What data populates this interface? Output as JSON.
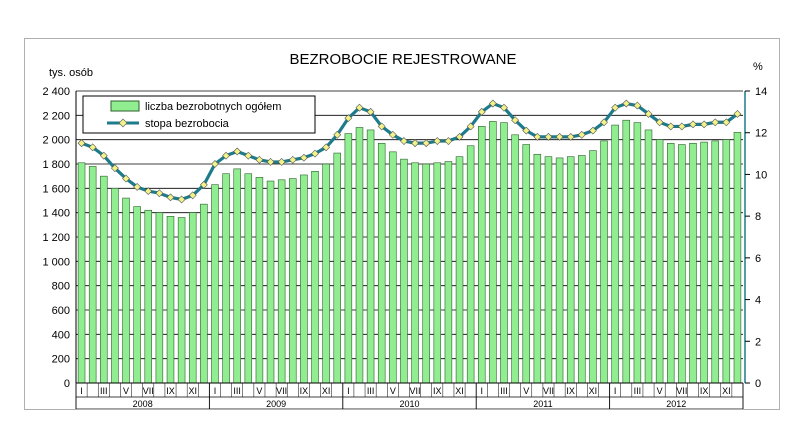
{
  "chart_data": {
    "type": "bar",
    "title": "BEZROBOCIE REJESTROWANE",
    "ylabel_left": "tys. osób",
    "ylabel_right": "%",
    "ylim_left": [
      0,
      2400
    ],
    "yticks_left": [
      0,
      200,
      400,
      600,
      800,
      1000,
      1200,
      1400,
      1600,
      1800,
      2000,
      2200,
      2400
    ],
    "ytick_labels_left": [
      "0",
      "200",
      "400",
      "600",
      "800",
      "1 000",
      "1 200",
      "1 400",
      "1 600",
      "1 800",
      "2 000",
      "2 200",
      "2 400"
    ],
    "ylim_right": [
      0,
      14
    ],
    "yticks_right": [
      "0",
      "2",
      "4",
      "6",
      "8",
      "10",
      "12",
      "14"
    ],
    "grid": "horizontal",
    "legend_position": "top-left",
    "years": [
      "2008",
      "2009",
      "2010",
      "2011",
      "2012"
    ],
    "month_labels": [
      "I",
      "",
      "III",
      "",
      "V",
      "",
      "VII",
      "",
      "IX",
      "",
      "XI",
      ""
    ],
    "colors": {
      "bar": "#90ee90",
      "bar_edge": "#2e5e2e",
      "line": "#1e7b8c",
      "marker": "#f2f28a"
    },
    "series": [
      {
        "name": "liczba bezrobotnych ogółem",
        "type": "bar",
        "axis": "left",
        "values": [
          1810,
          1780,
          1700,
          1600,
          1520,
          1450,
          1420,
          1400,
          1370,
          1360,
          1400,
          1470,
          1630,
          1720,
          1760,
          1720,
          1690,
          1660,
          1670,
          1680,
          1710,
          1740,
          1800,
          1890,
          2050,
          2100,
          2080,
          1970,
          1900,
          1840,
          1810,
          1800,
          1810,
          1820,
          1860,
          1950,
          2110,
          2150,
          2140,
          2040,
          1960,
          1880,
          1860,
          1850,
          1860,
          1870,
          1910,
          1990,
          2120,
          2160,
          2140,
          2080,
          2000,
          1970,
          1960,
          1970,
          1980,
          1990,
          2000,
          2060
        ]
      },
      {
        "name": "stopa bezrobocia",
        "type": "line",
        "axis": "right",
        "values": [
          11.5,
          11.3,
          10.9,
          10.3,
          9.8,
          9.4,
          9.2,
          9.1,
          8.9,
          8.8,
          9.0,
          9.5,
          10.5,
          10.9,
          11.1,
          10.9,
          10.7,
          10.6,
          10.6,
          10.7,
          10.8,
          11.0,
          11.3,
          11.9,
          12.7,
          13.2,
          13.0,
          12.3,
          11.9,
          11.6,
          11.5,
          11.5,
          11.6,
          11.6,
          11.8,
          12.3,
          13.0,
          13.4,
          13.2,
          12.6,
          12.1,
          11.8,
          11.8,
          11.8,
          11.8,
          11.9,
          12.1,
          12.5,
          13.2,
          13.4,
          13.3,
          12.9,
          12.5,
          12.3,
          12.3,
          12.4,
          12.4,
          12.5,
          12.5,
          12.9
        ]
      }
    ]
  }
}
